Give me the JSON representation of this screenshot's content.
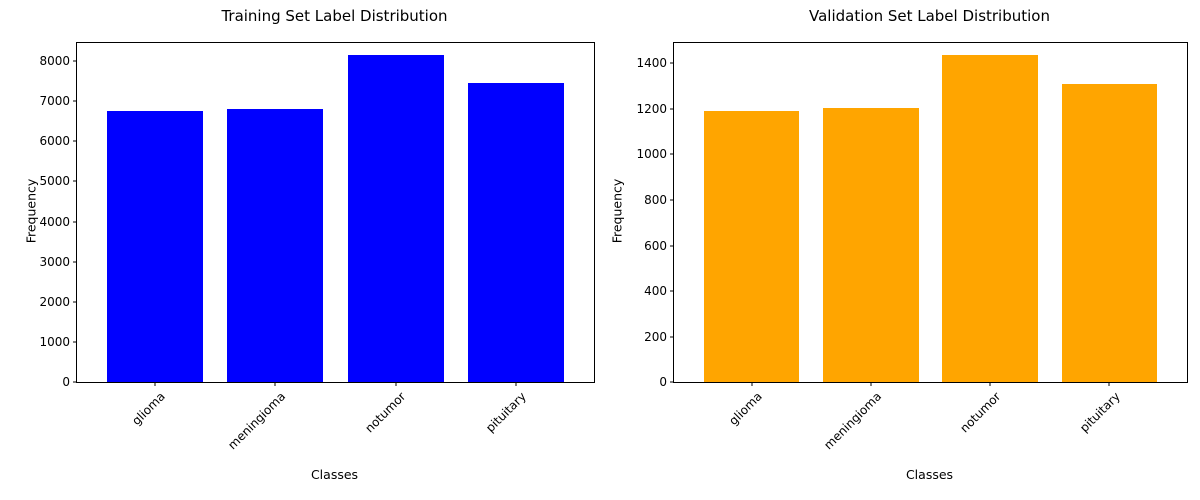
{
  "figure": {
    "background": "#ffffff",
    "text_color": "#000000"
  },
  "chart_data": [
    {
      "type": "bar",
      "title": "Training Set Label Distribution",
      "xlabel": "Classes",
      "ylabel": "Frequency",
      "categories": [
        "glioma",
        "meningioma",
        "notumor",
        "pituitary"
      ],
      "values": [
        6750,
        6815,
        8150,
        7450
      ],
      "bar_color": "#0000ff",
      "yticks": [
        0,
        1000,
        2000,
        3000,
        4000,
        5000,
        6000,
        7000,
        8000
      ],
      "ylim": [
        0,
        8450
      ],
      "xtick_rotation": 45,
      "grid": false,
      "legend": false
    },
    {
      "type": "bar",
      "title": "Validation Set Label Distribution",
      "xlabel": "Classes",
      "ylabel": "Frequency",
      "categories": [
        "glioma",
        "meningioma",
        "notumor",
        "pituitary"
      ],
      "values": [
        1190,
        1205,
        1438,
        1312
      ],
      "bar_color": "#ffa500",
      "yticks": [
        0,
        200,
        400,
        600,
        800,
        1000,
        1200,
        1400
      ],
      "ylim": [
        0,
        1490
      ],
      "xtick_rotation": 45,
      "grid": false,
      "legend": false
    }
  ]
}
